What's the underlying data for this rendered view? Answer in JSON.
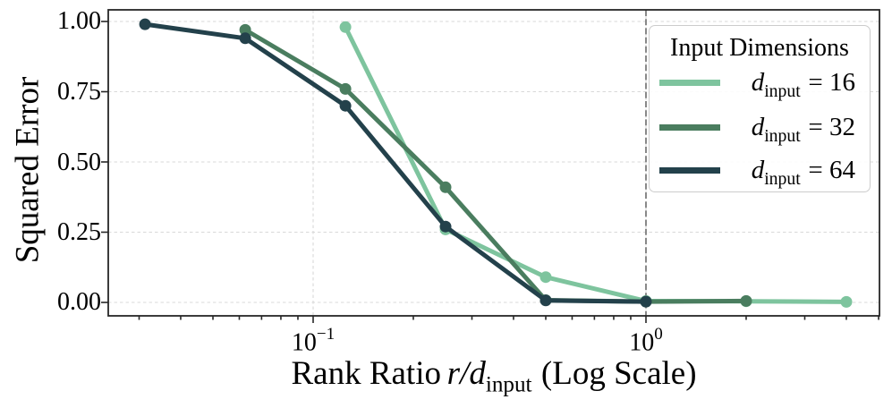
{
  "figure": {
    "background": "#ffffff",
    "spine_color": "#262626",
    "grid_color": "#d9d9d9",
    "reference_line_color": "#7c7c7c"
  },
  "axes": {
    "y_label": "Squared Error",
    "y_ticks": [
      "1.00",
      "0.75",
      "0.50",
      "0.25",
      "0.00"
    ],
    "x_ticks": [
      {
        "base": "10",
        "exp": "−1"
      },
      {
        "base": "10",
        "exp": "0"
      }
    ],
    "x_label": {
      "prefix": "Rank Ratio",
      "math_var": "r/d",
      "math_sub": "input",
      "suffix": "(Log Scale)"
    }
  },
  "legend": {
    "title": "Input Dimensions",
    "items": [
      {
        "var": "d",
        "sub": "input",
        "eq": "= 16",
        "color": "#7ec49e"
      },
      {
        "var": "d",
        "sub": "input",
        "eq": "= 32",
        "color": "#4a7d5f"
      },
      {
        "var": "d",
        "sub": "input",
        "eq": "= 64",
        "color": "#23414b"
      }
    ]
  },
  "chart_data": {
    "type": "line",
    "title": "",
    "xlabel": "Rank Ratio r/d_input (Log Scale)",
    "ylabel": "Squared Error",
    "x_scale": "log",
    "xlim": [
      0.024,
      5.03
    ],
    "ylim": [
      -0.05,
      1.04
    ],
    "grid": true,
    "legend_position": "upper right",
    "legend_title": "Input Dimensions",
    "y_gridlines": [
      0,
      0.25,
      0.5,
      0.75,
      1.0
    ],
    "x_major_ticks": [
      0.1,
      1.0
    ],
    "x_minor_ticks": [
      0.03,
      0.04,
      0.05,
      0.06,
      0.07,
      0.08,
      0.09,
      0.2,
      0.3,
      0.4,
      0.5,
      0.6,
      0.7,
      0.8,
      0.9,
      2,
      3,
      4,
      5
    ],
    "reference_line_x": 1.0,
    "series": [
      {
        "name": "d_input = 16",
        "color": "#7ec49e",
        "x": [
          0.125,
          0.25,
          0.5,
          1.0,
          2.0,
          4.0
        ],
        "y": [
          0.98,
          0.26,
          0.09,
          0.005,
          0.004,
          0.002
        ]
      },
      {
        "name": "d_input = 32",
        "color": "#4a7d5f",
        "x": [
          0.0625,
          0.125,
          0.25,
          0.5,
          1.0,
          2.0
        ],
        "y": [
          0.97,
          0.76,
          0.41,
          0.008,
          0.003,
          0.005
        ]
      },
      {
        "name": "d_input = 64",
        "color": "#23414b",
        "x": [
          0.03125,
          0.0625,
          0.125,
          0.25,
          0.5,
          1.0
        ],
        "y": [
          0.99,
          0.94,
          0.7,
          0.27,
          0.007,
          0.003
        ]
      }
    ]
  }
}
